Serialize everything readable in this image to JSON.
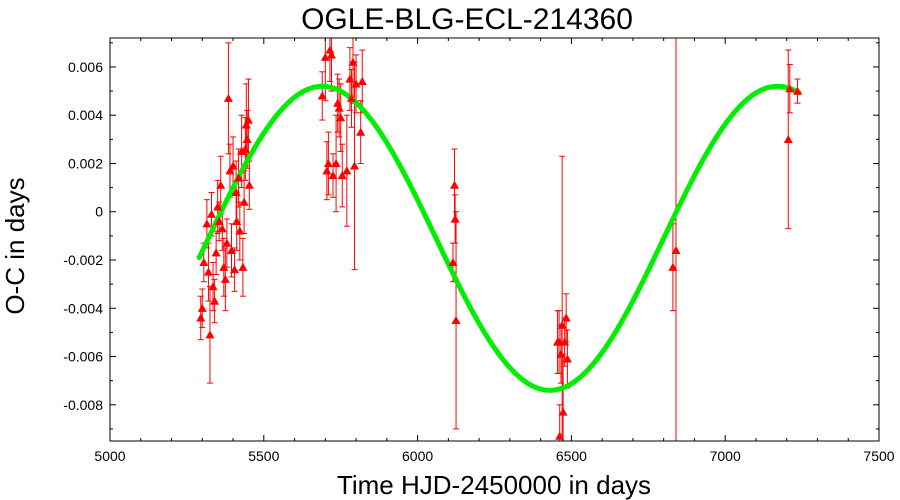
{
  "chart_data": {
    "type": "scatter",
    "title": "OGLE-BLG-ECL-214360",
    "xlabel": "Time HJD-2450000 in days",
    "ylabel": "O-C in days",
    "xlim": [
      5000,
      7500
    ],
    "ylim": [
      -0.0095,
      0.0072
    ],
    "xticks": [
      5000,
      5500,
      6000,
      6500,
      7000,
      7500
    ],
    "yticks": [
      -0.008,
      -0.006,
      -0.004,
      -0.002,
      0,
      0.002,
      0.004,
      0.006
    ],
    "ytick_labels": [
      "-0.008",
      "-0.006",
      "-0.004",
      "-0.002",
      "0",
      "0.002",
      "0.004",
      "0.006"
    ],
    "grid": false,
    "series": [
      {
        "kind": "points-with-error-bars",
        "color": "#ff0000",
        "marker": "triangle",
        "points": [
          {
            "x": 5295,
            "y": -0.0044,
            "err": 0.0009
          },
          {
            "x": 5300,
            "y": -0.004,
            "err": 0.0008
          },
          {
            "x": 5305,
            "y": -0.0021,
            "err": 0.0008
          },
          {
            "x": 5315,
            "y": -0.0005,
            "err": 0.001
          },
          {
            "x": 5320,
            "y": -0.0025,
            "err": 0.0012
          },
          {
            "x": 5325,
            "y": -0.0051,
            "err": 0.002
          },
          {
            "x": 5330,
            "y": -0.0001,
            "err": 0.0009
          },
          {
            "x": 5335,
            "y": -0.0031,
            "err": 0.001
          },
          {
            "x": 5340,
            "y": -0.0037,
            "err": 0.0009
          },
          {
            "x": 5345,
            "y": -0.0017,
            "err": 0.0009
          },
          {
            "x": 5350,
            "y": 0.0002,
            "err": 0.0011
          },
          {
            "x": 5355,
            "y": -0.0004,
            "err": 0.0008
          },
          {
            "x": 5360,
            "y": 0.0011,
            "err": 0.0012
          },
          {
            "x": 5365,
            "y": -0.0007,
            "err": 0.0009
          },
          {
            "x": 5370,
            "y": -0.0023,
            "err": 0.0012
          },
          {
            "x": 5375,
            "y": -0.0028,
            "err": 0.0013
          },
          {
            "x": 5380,
            "y": -0.0013,
            "err": 0.001
          },
          {
            "x": 5385,
            "y": 0.0047,
            "err": 0.0023
          },
          {
            "x": 5390,
            "y": 0.0017,
            "err": 0.0011
          },
          {
            "x": 5395,
            "y": -0.0016,
            "err": 0.0011
          },
          {
            "x": 5400,
            "y": 0.0019,
            "err": 0.0012
          },
          {
            "x": 5405,
            "y": -0.0024,
            "err": 0.0009
          },
          {
            "x": 5410,
            "y": 0.0008,
            "err": 0.0013
          },
          {
            "x": 5412,
            "y": -0.0004,
            "err": 0.0012
          },
          {
            "x": 5418,
            "y": 0.0014,
            "err": 0.0012
          },
          {
            "x": 5422,
            "y": -0.0008,
            "err": 0.0012
          },
          {
            "x": 5428,
            "y": 0.0025,
            "err": 0.0015
          },
          {
            "x": 5432,
            "y": -0.0023,
            "err": 0.0012
          },
          {
            "x": 5436,
            "y": 0.0004,
            "err": 0.0013
          },
          {
            "x": 5440,
            "y": 0.0026,
            "err": 0.0013
          },
          {
            "x": 5443,
            "y": 0.0036,
            "err": 0.0017
          },
          {
            "x": 5446,
            "y": 0.003,
            "err": 0.0012
          },
          {
            "x": 5450,
            "y": 0.0038,
            "err": 0.0017
          },
          {
            "x": 5453,
            "y": 0.0011,
            "err": 0.001
          },
          {
            "x": 5690,
            "y": 0.0048,
            "err": 0.001
          },
          {
            "x": 5700,
            "y": 0.0064,
            "err": 0.0018
          },
          {
            "x": 5705,
            "y": 0.0017,
            "err": 0.0012
          },
          {
            "x": 5710,
            "y": 0.002,
            "err": 0.0013
          },
          {
            "x": 5715,
            "y": 0.0067,
            "err": 0.0013
          },
          {
            "x": 5720,
            "y": 0.0065,
            "err": 0.0015
          },
          {
            "x": 5725,
            "y": 0.0015,
            "err": 0.0009
          },
          {
            "x": 5735,
            "y": 0.002,
            "err": 0.002
          },
          {
            "x": 5740,
            "y": 0.0045,
            "err": 0.0012
          },
          {
            "x": 5745,
            "y": 0.0043,
            "err": 0.0012
          },
          {
            "x": 5750,
            "y": 0.0039,
            "err": 0.0014
          },
          {
            "x": 5755,
            "y": 0.0015,
            "err": 0.0013
          },
          {
            "x": 5770,
            "y": 0.0017,
            "err": 0.0023
          },
          {
            "x": 5780,
            "y": 0.0055,
            "err": 0.0013
          },
          {
            "x": 5785,
            "y": 0.0047,
            "err": 0.0012
          },
          {
            "x": 5790,
            "y": 0.0062,
            "err": 0.0017
          },
          {
            "x": 5795,
            "y": 0.0019,
            "err": 0.0043
          },
          {
            "x": 5800,
            "y": 0.0053,
            "err": 0.0012
          },
          {
            "x": 5815,
            "y": 0.0033,
            "err": 0.0013
          },
          {
            "x": 5820,
            "y": 0.0054,
            "err": 0.0013
          },
          {
            "x": 6115,
            "y": -0.0021,
            "err": 0.0008
          },
          {
            "x": 6120,
            "y": 0.0011,
            "err": 0.0015
          },
          {
            "x": 6122,
            "y": -0.0003,
            "err": 0.001
          },
          {
            "x": 6125,
            "y": -0.0045,
            "err": 0.0045
          },
          {
            "x": 6455,
            "y": -0.0054,
            "err": 0.0013
          },
          {
            "x": 6460,
            "y": -0.0054,
            "err": 0.0013
          },
          {
            "x": 6462,
            "y": -0.0093,
            "err": 0.0013
          },
          {
            "x": 6466,
            "y": -0.0059,
            "err": 0.0012
          },
          {
            "x": 6470,
            "y": -0.0047,
            "err": 0.007
          },
          {
            "x": 6473,
            "y": -0.0083,
            "err": 0.0024
          },
          {
            "x": 6478,
            "y": -0.0054,
            "err": 0.001
          },
          {
            "x": 6483,
            "y": -0.0044,
            "err": 0.001
          },
          {
            "x": 6487,
            "y": -0.0061,
            "err": 0.0012
          },
          {
            "x": 6830,
            "y": -0.0023,
            "err": 0.0018
          },
          {
            "x": 6840,
            "y": -0.0016,
            "err": 0.009
          },
          {
            "x": 7205,
            "y": 0.003,
            "err": 0.0037
          },
          {
            "x": 7210,
            "y": 0.0051,
            "err": 0.001
          },
          {
            "x": 7235,
            "y": 0.005,
            "err": 0.0005
          }
        ]
      },
      {
        "kind": "fit-curve",
        "color": "#00ee00",
        "x_range": [
          5290,
          7240
        ],
        "model": {
          "offset": -0.0011,
          "amplitude": 0.0063,
          "period": 1480,
          "phase": 5690
        }
      }
    ]
  }
}
